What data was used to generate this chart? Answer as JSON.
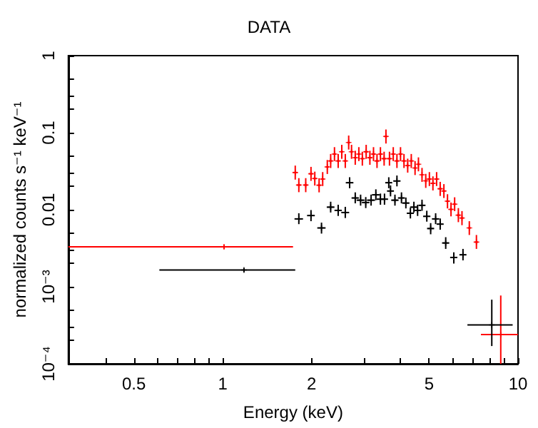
{
  "chart_data": {
    "type": "scatter",
    "title": "DATA",
    "xlabel": "Energy (keV)",
    "ylabel": "normalized counts s⁻¹ keV⁻¹",
    "log": "xy",
    "marker": "cross",
    "grid": false,
    "xlim": [
      0.3,
      10
    ],
    "ylim": [
      0.0001,
      1
    ],
    "xticks": [
      {
        "value": 0.3,
        "label": null
      },
      {
        "value": 0.4,
        "label": null
      },
      0.5,
      {
        "value": 0.6,
        "label": null
      },
      {
        "value": 0.7,
        "label": null
      },
      {
        "value": 0.8,
        "label": null
      },
      {
        "value": 0.9,
        "label": null
      },
      1,
      2,
      {
        "value": 3,
        "label": null
      },
      {
        "value": 4,
        "label": null
      },
      5,
      {
        "value": 6,
        "label": null
      },
      {
        "value": 7,
        "label": null
      },
      {
        "value": 8,
        "label": null
      },
      {
        "value": 9,
        "label": null
      },
      10
    ],
    "yticks": [
      {
        "value": 0.0001,
        "label": "10⁻⁴"
      },
      {
        "value": 0.0002,
        "label": null
      },
      {
        "value": 0.0003,
        "label": null
      },
      {
        "value": 0.0005,
        "label": null
      },
      {
        "value": 0.001,
        "label": "10⁻³"
      },
      {
        "value": 0.002,
        "label": null
      },
      {
        "value": 0.003,
        "label": null
      },
      {
        "value": 0.005,
        "label": null
      },
      0.01,
      {
        "value": 0.02,
        "label": null
      },
      {
        "value": 0.03,
        "label": null
      },
      {
        "value": 0.05,
        "label": null
      },
      0.1,
      {
        "value": 0.2,
        "label": null
      },
      {
        "value": 0.3,
        "label": null
      },
      {
        "value": 0.5,
        "label": null
      },
      1
    ],
    "series": [
      {
        "color": "#ff0000",
        "x": [
          1.01,
          1.76,
          1.81,
          1.91,
          1.99,
          2.05,
          2.12,
          2.18,
          2.26,
          2.32,
          2.39,
          2.46,
          2.53,
          2.6,
          2.67,
          2.73,
          2.81,
          2.89,
          2.97,
          3.06,
          3.15,
          3.24,
          3.33,
          3.42,
          3.52,
          3.57,
          3.67,
          3.78,
          3.89,
          4.0,
          4.11,
          4.23,
          4.35,
          4.48,
          4.6,
          4.73,
          4.87,
          5.01,
          5.15,
          5.3,
          5.45,
          5.61,
          5.77,
          5.93,
          6.1,
          6.28,
          6.46,
          6.84,
          7.23,
          8.74
        ],
        "values": [
          0.0033,
          0.0304,
          0.0209,
          0.0209,
          0.0293,
          0.0254,
          0.0208,
          0.025,
          0.0359,
          0.043,
          0.0528,
          0.043,
          0.0566,
          0.043,
          0.0746,
          0.0566,
          0.0473,
          0.0528,
          0.046,
          0.0566,
          0.0473,
          0.0528,
          0.043,
          0.0528,
          0.046,
          0.0893,
          0.046,
          0.0528,
          0.043,
          0.0528,
          0.043,
          0.0374,
          0.043,
          0.0348,
          0.0389,
          0.0284,
          0.0237,
          0.025,
          0.022,
          0.025,
          0.0187,
          0.0175,
          0.0129,
          0.0101,
          0.0118,
          0.0085,
          0.0078,
          0.0058,
          0.0038,
          0.00024
        ],
        "errors": [
          [
            0.0031,
            0.0035
          ],
          [
            0.0246,
            0.0374
          ],
          [
            0.0169,
            0.0257
          ],
          [
            0.0169,
            0.0257
          ],
          [
            0.0237,
            0.036
          ],
          [
            0.0206,
            0.0312
          ],
          [
            0.0168,
            0.0256
          ],
          [
            0.0203,
            0.0308
          ],
          [
            0.0291,
            0.0442
          ],
          [
            0.0348,
            0.0529
          ],
          [
            0.0428,
            0.0649
          ],
          [
            0.0348,
            0.0529
          ],
          [
            0.0458,
            0.0696
          ],
          [
            0.0348,
            0.0529
          ],
          [
            0.0604,
            0.0918
          ],
          [
            0.0458,
            0.0696
          ],
          [
            0.0383,
            0.0582
          ],
          [
            0.0428,
            0.0649
          ],
          [
            0.0373,
            0.0566
          ],
          [
            0.0458,
            0.0696
          ],
          [
            0.0383,
            0.0582
          ],
          [
            0.0428,
            0.0649
          ],
          [
            0.0348,
            0.0529
          ],
          [
            0.0428,
            0.0649
          ],
          [
            0.0373,
            0.0566
          ],
          [
            0.0723,
            0.11
          ],
          [
            0.0373,
            0.0566
          ],
          [
            0.0428,
            0.0649
          ],
          [
            0.0348,
            0.0529
          ],
          [
            0.0428,
            0.0649
          ],
          [
            0.0348,
            0.0529
          ],
          [
            0.0303,
            0.046
          ],
          [
            0.0348,
            0.0529
          ],
          [
            0.0282,
            0.0428
          ],
          [
            0.0315,
            0.0478
          ],
          [
            0.023,
            0.0349
          ],
          [
            0.0192,
            0.0292
          ],
          [
            0.0203,
            0.0308
          ],
          [
            0.0178,
            0.0271
          ],
          [
            0.0203,
            0.0308
          ],
          [
            0.0151,
            0.023
          ],
          [
            0.0142,
            0.0215
          ],
          [
            0.0104,
            0.0159
          ],
          [
            0.0082,
            0.0124
          ],
          [
            0.0096,
            0.0145
          ],
          [
            0.0069,
            0.0105
          ],
          [
            0.0063,
            0.0096
          ],
          [
            0.0047,
            0.0071
          ],
          [
            0.0031,
            0.0047
          ],
          [
            0.0001,
            0.00077
          ]
        ],
        "xerrors": [
          [
            0.3,
            1.73
          ],
          0.03,
          0.03,
          0.03,
          0.03,
          0.03,
          0.03,
          0.03,
          0.03,
          0.03,
          0.03,
          0.03,
          0.03,
          0.03,
          0.03,
          0.03,
          0.03,
          0.03,
          0.03,
          0.05,
          0.05,
          0.05,
          0.05,
          0.05,
          0.05,
          0.05,
          0.05,
          0.05,
          0.05,
          0.05,
          0.05,
          0.05,
          0.05,
          0.05,
          0.05,
          0.05,
          0.05,
          0.08,
          0.08,
          0.08,
          0.08,
          0.08,
          0.08,
          0.08,
          0.08,
          0.08,
          0.08,
          0.08,
          0.1,
          [
            7.49,
            10
          ]
        ]
      },
      {
        "color": "#000000",
        "x": [
          1.18,
          1.81,
          1.99,
          2.16,
          2.32,
          2.46,
          2.6,
          2.69,
          2.81,
          2.93,
          3.05,
          3.18,
          3.3,
          3.42,
          3.53,
          3.65,
          3.7,
          3.83,
          3.89,
          4.03,
          4.17,
          4.32,
          4.44,
          4.57,
          4.73,
          4.91,
          5.06,
          5.26,
          5.45,
          5.69,
          6.06,
          6.51,
          8.15
        ],
        "values": [
          0.00165,
          0.0076,
          0.0084,
          0.0058,
          0.0108,
          0.0098,
          0.0092,
          0.0224,
          0.0142,
          0.0133,
          0.0124,
          0.0133,
          0.0156,
          0.0137,
          0.0137,
          0.0224,
          0.0175,
          0.0133,
          0.0236,
          0.0142,
          0.0122,
          0.009,
          0.0108,
          0.0098,
          0.0114,
          0.0082,
          0.0057,
          0.0076,
          0.0065,
          0.0037,
          0.0024,
          0.0026,
          0.00032
        ],
        "errors": [
          [
            0.00155,
            0.00175
          ],
          [
            0.0065,
            0.009
          ],
          [
            0.0071,
            0.0099
          ],
          [
            0.0049,
            0.0068
          ],
          [
            0.0092,
            0.0127
          ],
          [
            0.0083,
            0.0116
          ],
          [
            0.0078,
            0.0109
          ],
          [
            0.019,
            0.0264
          ],
          [
            0.0121,
            0.0168
          ],
          [
            0.0113,
            0.0157
          ],
          [
            0.0105,
            0.0146
          ],
          [
            0.0113,
            0.0157
          ],
          [
            0.0133,
            0.0184
          ],
          [
            0.0116,
            0.0162
          ],
          [
            0.0116,
            0.0162
          ],
          [
            0.019,
            0.0264
          ],
          [
            0.0149,
            0.0207
          ],
          [
            0.0113,
            0.0157
          ],
          [
            0.0201,
            0.0278
          ],
          [
            0.0121,
            0.0168
          ],
          [
            0.0104,
            0.0144
          ],
          [
            0.0077,
            0.0106
          ],
          [
            0.0092,
            0.0127
          ],
          [
            0.0083,
            0.0116
          ],
          [
            0.0097,
            0.0135
          ],
          [
            0.007,
            0.0097
          ],
          [
            0.0048,
            0.0067
          ],
          [
            0.0065,
            0.009
          ],
          [
            0.0055,
            0.0077
          ],
          [
            0.0031,
            0.0044
          ],
          [
            0.002,
            0.0028
          ],
          [
            0.0022,
            0.0031
          ],
          [
            0.00017,
            0.00068
          ]
        ],
        "xerrors": [
          [
            0.61,
            1.76
          ],
          0.06,
          0.06,
          0.07,
          0.07,
          0.07,
          0.08,
          0.08,
          0.08,
          0.09,
          0.09,
          0.1,
          0.1,
          0.1,
          0.1,
          0.1,
          0.1,
          0.11,
          0.11,
          0.11,
          0.12,
          0.12,
          0.13,
          0.13,
          0.13,
          0.14,
          0.14,
          0.15,
          0.15,
          0.16,
          0.17,
          0.18,
          [
            6.74,
            9.59
          ]
        ]
      }
    ]
  }
}
